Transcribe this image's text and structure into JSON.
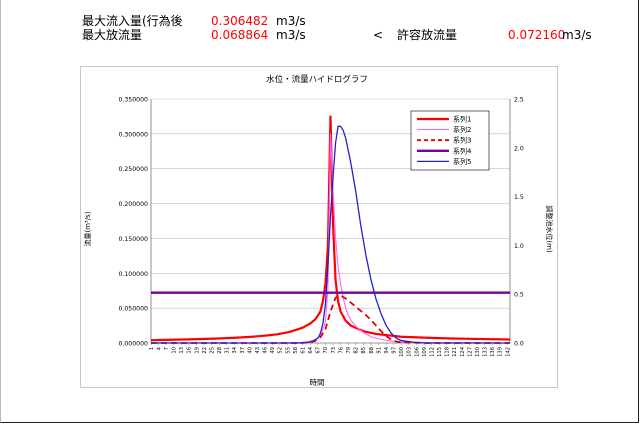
{
  "summary": {
    "max_inflow": {
      "label": "最大流入量(行為後",
      "value": "0.306482",
      "unit": "m3/s"
    },
    "max_outflow": {
      "label": "最大放流量",
      "value": "0.068864",
      "unit": "m3/s"
    },
    "comparison_symbol": "<",
    "allowable_outflow": {
      "label": "許容放流量",
      "value": "0.072160",
      "unit": "m3/s"
    }
  },
  "colors": {
    "value_text": "#ff0000"
  },
  "chart_data": {
    "type": "line",
    "title": "水位・流量ハイドログラフ",
    "xlabel": "時間",
    "ylabel": "流量(m³/s)",
    "y2label": "調整池水位(m)",
    "xlim": [
      1,
      143
    ],
    "ylim": [
      0,
      0.35
    ],
    "y2lim": [
      0,
      2.5
    ],
    "y_ticks": [
      "0.000000",
      "0.050000",
      "0.100000",
      "0.150000",
      "0.200000",
      "0.250000",
      "0.300000",
      "0.350000"
    ],
    "y2_ticks": [
      "0.0",
      "0.5",
      "1.0",
      "1.5",
      "2.0",
      "2.5"
    ],
    "x_ticks": [
      "1",
      "4",
      "7",
      "10",
      "13",
      "16",
      "19",
      "22",
      "25",
      "28",
      "31",
      "34",
      "37",
      "40",
      "43",
      "46",
      "49",
      "52",
      "55",
      "58",
      "61",
      "64",
      "67",
      "70",
      "73",
      "76",
      "79",
      "82",
      "85",
      "88",
      "91",
      "94",
      "97",
      "100",
      "103",
      "106",
      "109",
      "112",
      "115",
      "118",
      "121",
      "124",
      "127",
      "130",
      "133",
      "136",
      "139",
      "142"
    ],
    "grid": true,
    "legend_position": "top-right",
    "series": [
      {
        "name": "系列1",
        "color": "#ff0000",
        "dash": "",
        "width": 2.2,
        "axis": "left",
        "x": [
          1,
          6,
          11,
          16,
          21,
          26,
          31,
          36,
          41,
          46,
          51,
          56,
          61,
          64,
          66,
          68,
          69,
          70,
          71,
          72,
          73,
          74,
          75,
          76,
          78,
          80,
          85,
          90,
          95,
          100,
          110,
          120,
          130,
          143
        ],
        "y": [
          0.004,
          0.0045,
          0.0048,
          0.0052,
          0.0057,
          0.0063,
          0.007,
          0.0079,
          0.009,
          0.0105,
          0.0125,
          0.016,
          0.022,
          0.028,
          0.034,
          0.045,
          0.06,
          0.085,
          0.14,
          0.325,
          0.17,
          0.09,
          0.06,
          0.045,
          0.032,
          0.025,
          0.017,
          0.013,
          0.011,
          0.009,
          0.0075,
          0.0065,
          0.0058,
          0.005
        ]
      },
      {
        "name": "系列2",
        "color": "#ff66ff",
        "dash": "",
        "width": 1.1,
        "axis": "left",
        "x": [
          1,
          55,
          62,
          66,
          68,
          70,
          71,
          72,
          73,
          74,
          75,
          76,
          77,
          78,
          79,
          80,
          82,
          85,
          88,
          92,
          96,
          100,
          110,
          143
        ],
        "y": [
          0,
          0,
          0.001,
          0.004,
          0.01,
          0.03,
          0.08,
          0.3,
          0.22,
          0.15,
          0.11,
          0.085,
          0.065,
          0.05,
          0.04,
          0.033,
          0.024,
          0.015,
          0.009,
          0.005,
          0.003,
          0.0015,
          0.0005,
          0
        ]
      },
      {
        "name": "系列3",
        "color": "#e00000",
        "dash": "6,4",
        "width": 1.8,
        "axis": "left",
        "x": [
          1,
          60,
          64,
          66,
          68,
          70,
          72,
          74,
          76,
          78,
          80,
          82,
          84,
          86,
          88,
          90,
          92,
          94,
          96,
          98,
          100,
          110,
          143
        ],
        "y": [
          0,
          0,
          0.001,
          0.003,
          0.008,
          0.02,
          0.045,
          0.065,
          0.068,
          0.064,
          0.058,
          0.052,
          0.046,
          0.04,
          0.033,
          0.025,
          0.017,
          0.01,
          0.005,
          0.002,
          0.001,
          0,
          0
        ]
      },
      {
        "name": "系列4",
        "color": "#7b0099",
        "dash": "",
        "width": 2.4,
        "axis": "left",
        "x": [
          1,
          143
        ],
        "y": [
          0.07216,
          0.07216
        ]
      },
      {
        "name": "系列5",
        "color": "#2222cc",
        "dash": "",
        "width": 1.3,
        "axis": "right",
        "x": [
          1,
          60,
          63,
          65,
          67,
          68,
          69,
          70,
          71,
          72,
          73,
          74,
          75,
          76,
          77,
          78,
          80,
          82,
          84,
          86,
          88,
          90,
          92,
          94,
          96,
          98,
          100,
          105,
          110,
          143
        ],
        "y": [
          0,
          0,
          0.005,
          0.02,
          0.05,
          0.1,
          0.2,
          0.4,
          0.8,
          1.3,
          1.7,
          2.05,
          2.22,
          2.22,
          2.18,
          2.1,
          1.85,
          1.55,
          1.2,
          0.9,
          0.65,
          0.45,
          0.3,
          0.18,
          0.1,
          0.05,
          0.025,
          0.008,
          0,
          0
        ]
      }
    ]
  }
}
